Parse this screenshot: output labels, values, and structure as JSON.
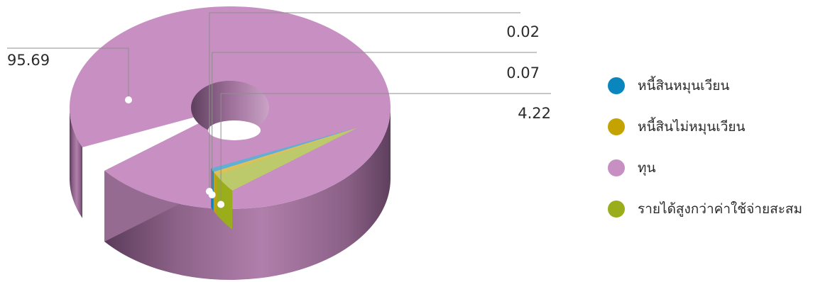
{
  "chart_data": {
    "type": "pie",
    "style": "3d-donut",
    "legend_position": "right",
    "series": [
      {
        "name": "หนี้สินหมุนเวียน",
        "value": 0.02,
        "color": "#0A86BE",
        "label": "0.02"
      },
      {
        "name": "หนี้สินไม่หมุนเวียน",
        "value": 0.07,
        "color": "#C4A300",
        "label": "0.07"
      },
      {
        "name": "ทุน",
        "value": 95.69,
        "color": "#C78FC2",
        "label": "95.69"
      },
      {
        "name": "รายได้สูงกว่าค่าใช้จ่ายสะสม",
        "value": 4.22,
        "color": "#9AAE1C",
        "label": "4.22"
      }
    ]
  }
}
